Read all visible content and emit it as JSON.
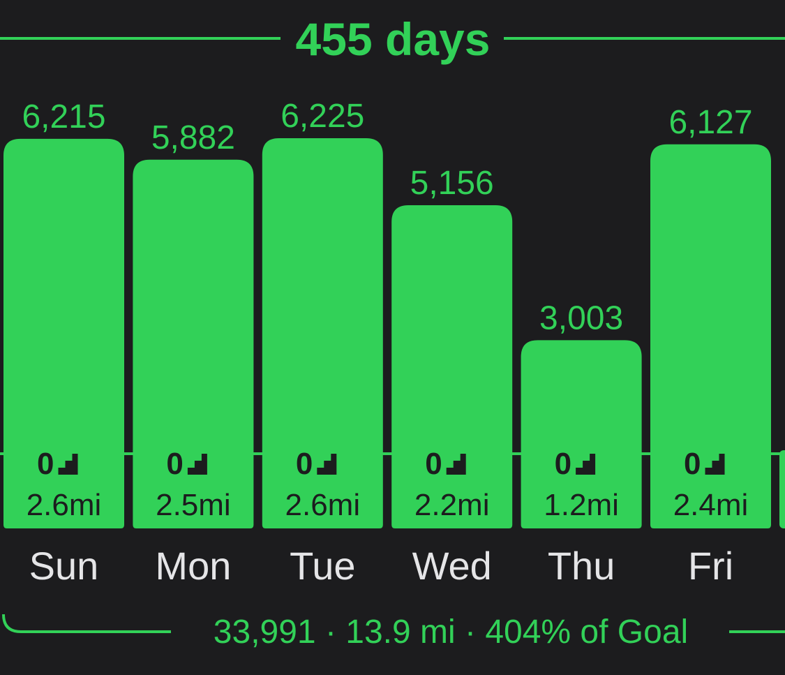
{
  "chart_data": {
    "type": "bar",
    "title": "455 days",
    "subtitle": "33,991 · 13.9 mi · 404% of Goal",
    "categories": [
      "Sun",
      "Mon",
      "Tue",
      "Wed",
      "Thu",
      "Fri"
    ],
    "values": [
      6215,
      5882,
      6225,
      5156,
      3003,
      6127
    ],
    "value_labels": [
      "6,215",
      "5,882",
      "6,225",
      "5,156",
      "3,003",
      "6,127"
    ],
    "floors": {
      "values": [
        0,
        0,
        0,
        0,
        0,
        0
      ]
    },
    "distances": {
      "values": [
        2.6,
        2.5,
        2.6,
        2.2,
        1.2,
        2.4
      ],
      "value_labels": [
        "2.6mi",
        "2.5mi",
        "2.6mi",
        "2.2mi",
        "1.2mi",
        "2.4mi"
      ]
    },
    "color": "#32d158"
  }
}
